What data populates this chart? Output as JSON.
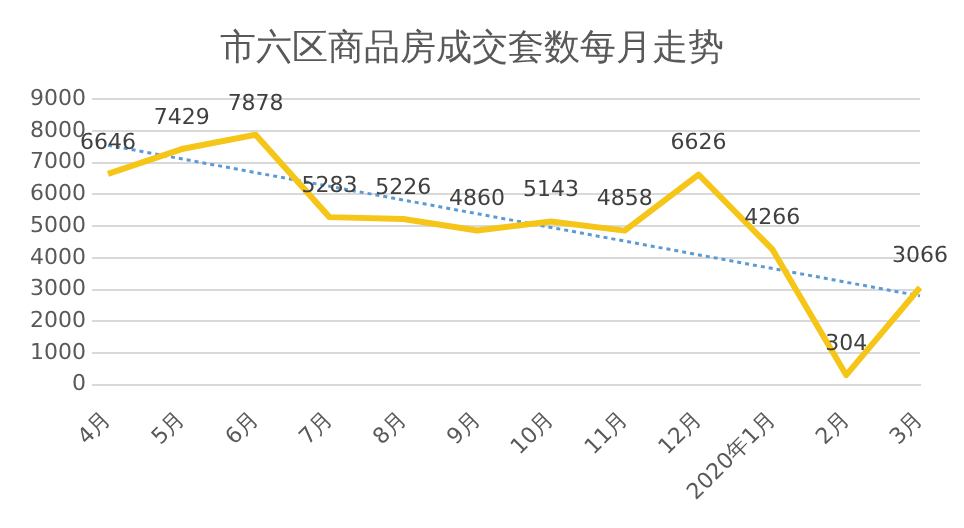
{
  "chart_data": {
    "type": "line",
    "title": "市六区商品房成交套数每月走势",
    "categories": [
      "4月",
      "5月",
      "6月",
      "7月",
      "8月",
      "9月",
      "10月",
      "11月",
      "12月",
      "2020年1月",
      "2月",
      "3月"
    ],
    "series": [
      {
        "color": "#f5c518",
        "values": [
          6646,
          7429,
          7878,
          5283,
          5226,
          4860,
          5143,
          4858,
          6626,
          4266,
          304,
          3066
        ],
        "value_labels": [
          "6646",
          "7429",
          "7878",
          "5283",
          "5226",
          "4860",
          "5143",
          "4858",
          "6626",
          "4266",
          "304",
          "3066"
        ],
        "line_style": "solid"
      },
      {
        "type": "line",
        "color": "#5b9bd5",
        "x": [
          "4月",
          "3月"
        ],
        "values": [
          7550,
          2800
        ],
        "line_style": "dotted"
      }
    ],
    "ylim": [
      0,
      9000
    ],
    "yticks": [
      0,
      1000,
      2000,
      3000,
      4000,
      5000,
      6000,
      7000,
      8000,
      9000
    ],
    "grid": "y",
    "legend": false,
    "marker": "none"
  }
}
